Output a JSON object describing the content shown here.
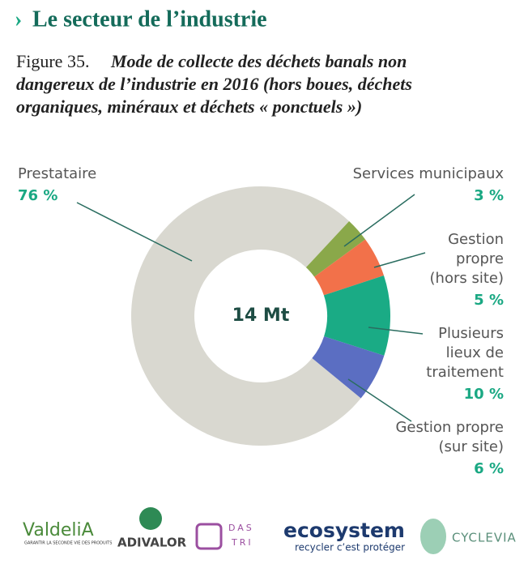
{
  "header": {
    "title": "Le secteur de l’industrie",
    "figure_number": "Figure 35.",
    "caption_lines": [
      "Mode de collecte des déchets banals non",
      "dangereux de l’industrie en 2016 (hors boues, déchets",
      "organiques, minéraux et déchets « ponctuels »)"
    ]
  },
  "chart_data": {
    "type": "donut",
    "center_label": "14 Mt",
    "categories": [
      [
        "Prestataire"
      ],
      [
        "Services municipaux"
      ],
      [
        "Gestion",
        "propre",
        "(hors site)"
      ],
      [
        "Plusieurs",
        "lieux de",
        "traitement"
      ],
      [
        "Gestion propre",
        "(sur site)"
      ]
    ],
    "values": [
      76,
      3,
      5,
      10,
      6
    ],
    "value_labels": [
      "76 %",
      "3 %",
      "5 %",
      "10 %",
      "6 %"
    ],
    "colors": [
      "#d9d8d0",
      "#8aa84a",
      "#f2714a",
      "#1aab85",
      "#5b6ec2"
    ]
  },
  "logos": {
    "valdelia": "ValdeliA",
    "valdelia_tagline": "GARANTIR LA SECONDE VIE DES PRODUITS",
    "adivalor": "ADIVALOR",
    "dastri": [
      "DAS",
      "TRI"
    ],
    "ecosystem": "ecosystem",
    "ecosystem_tagline": "recycler c’est protéger",
    "cyclevia": "CYCLEVIA"
  }
}
